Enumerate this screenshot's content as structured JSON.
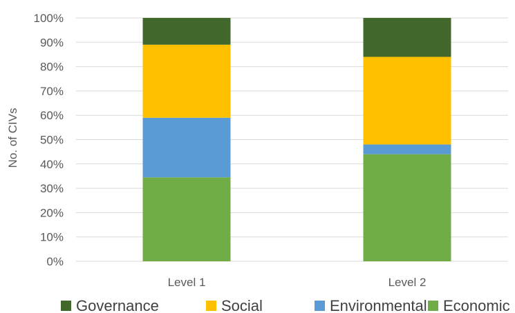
{
  "chart_data": {
    "type": "bar",
    "stacked": true,
    "percent": true,
    "categories": [
      "Level 1",
      "Level 2"
    ],
    "series": [
      {
        "name": "Economic",
        "values": [
          34.5,
          44
        ],
        "color": "#70ad47"
      },
      {
        "name": "Environmental",
        "values": [
          24.5,
          4
        ],
        "color": "#5b9bd5"
      },
      {
        "name": "Social",
        "values": [
          30,
          36
        ],
        "color": "#ffc000"
      },
      {
        "name": "Governance",
        "values": [
          11,
          16
        ],
        "color": "#43682b"
      }
    ],
    "legend_order": [
      "Governance",
      "Social",
      "Environmental",
      "Economic"
    ],
    "title": "",
    "xlabel": "",
    "ylabel": "No. of CIVs",
    "ylim": [
      0,
      100
    ],
    "yticks": [
      "0%",
      "10%",
      "20%",
      "30%",
      "40%",
      "50%",
      "60%",
      "70%",
      "80%",
      "90%",
      "100%"
    ],
    "grid": true,
    "legend_position": "bottom"
  }
}
